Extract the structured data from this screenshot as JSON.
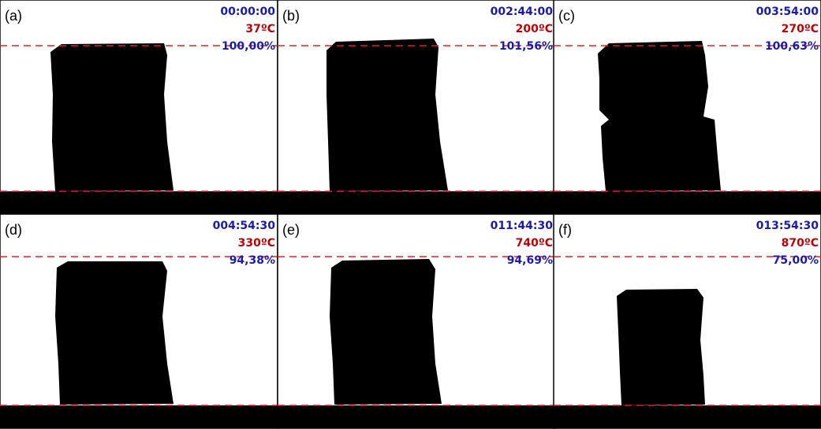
{
  "panels": [
    {
      "label": "(a)",
      "time": "00:00:00",
      "temperature": "37ºC",
      "ratio": "100,00%"
    },
    {
      "label": "(b)",
      "time": "002:44:00",
      "temperature": "200ºC",
      "ratio": "101,56%"
    },
    {
      "label": "(c)",
      "time": "003:54:00",
      "temperature": "270ºC",
      "ratio": "100,63%"
    },
    {
      "label": "(d)",
      "time": "004:54:30",
      "temperature": "330ºC",
      "ratio": "94,38%"
    },
    {
      "label": "(e)",
      "time": "011:44:30",
      "temperature": "740ºC",
      "ratio": "94,69%"
    },
    {
      "label": "(f)",
      "time": "013:54:30",
      "temperature": "870ºC",
      "ratio": "75,00%"
    }
  ]
}
